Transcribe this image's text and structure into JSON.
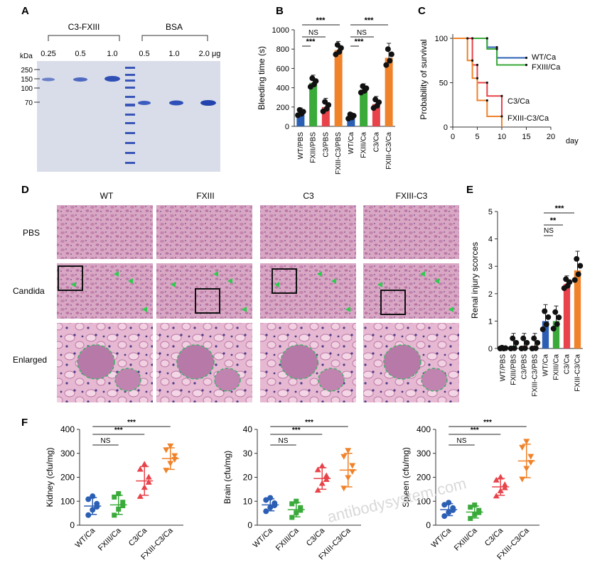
{
  "watermark": "antibodysystem.com",
  "panelA": {
    "letter": "A",
    "groups": [
      "C3-FXIII",
      "BSA"
    ],
    "kda_label": "kDa",
    "kda_marks": [
      "250",
      "150",
      "100",
      "70"
    ],
    "lane_amounts": [
      "0.25",
      "0.5",
      "1.0",
      "0.5",
      "1.0",
      "2.0 μg"
    ]
  },
  "panelB": {
    "letter": "B",
    "ylabel": "Bleeding time (s)",
    "yticks": [
      "0",
      "200",
      "400",
      "600",
      "800",
      "1000"
    ],
    "sig": [
      {
        "label": "***"
      },
      {
        "label": "NS"
      },
      {
        "label": "***"
      },
      {
        "label": "***"
      },
      {
        "label": "NS"
      },
      {
        "label": "***"
      }
    ]
  },
  "panelC": {
    "letter": "C",
    "ylabel": "Probability of survival",
    "yticks": [
      "0",
      "50",
      "100"
    ],
    "xticks": [
      "0",
      "5",
      "10",
      "15",
      "20"
    ],
    "xunit": "day",
    "series_labels": [
      "WT/Ca",
      "FXIII/Ca",
      "C3/Ca",
      "FXIII-C3/Ca"
    ]
  },
  "panelD": {
    "letter": "D",
    "columns": [
      "WT",
      "FXIII",
      "C3",
      "FXIII-C3"
    ],
    "rows": [
      "PBS",
      "Candida",
      "Enlarged"
    ]
  },
  "panelE": {
    "letter": "E",
    "ylabel": "Renal injury scorces",
    "yticks": [
      "0",
      "1",
      "2",
      "3",
      "4",
      "5"
    ],
    "sig": [
      "***",
      "**",
      "NS"
    ]
  },
  "panelF": {
    "letter": "F",
    "sig": [
      "***",
      "***",
      "NS"
    ]
  },
  "chart_data": [
    {
      "type": "bar",
      "id": "B",
      "categories": [
        "WT/PBS",
        "FXIII/PBS",
        "C3/PBS",
        "FXIII-C3/PBS",
        "WT/Ca",
        "FXIII/Ca",
        "C3/Ca",
        "FXIII-C3/Ca"
      ],
      "values": [
        140,
        450,
        200,
        790,
        100,
        380,
        230,
        710
      ],
      "errors": [
        50,
        80,
        90,
        90,
        40,
        60,
        80,
        150
      ],
      "colors": [
        "#2b5fb4",
        "#3aaa3a",
        "#e8434a",
        "#f0822a",
        "#2b5fb4",
        "#3aaa3a",
        "#e8434a",
        "#f0822a"
      ],
      "ylabel": "Bleeding time (s)",
      "ylim": [
        0,
        1000
      ]
    },
    {
      "type": "line",
      "id": "C",
      "ylabel": "Probability of survival",
      "xlim": [
        0,
        20
      ],
      "ylim": [
        0,
        100
      ],
      "series": [
        {
          "name": "WT/Ca",
          "color": "#2b5fb4",
          "x": [
            0,
            7,
            9,
            15
          ],
          "y": [
            100,
            90,
            78,
            78
          ]
        },
        {
          "name": "FXIII/Ca",
          "color": "#3aaa3a",
          "x": [
            0,
            7,
            9,
            15
          ],
          "y": [
            100,
            88,
            70,
            70
          ]
        },
        {
          "name": "C3/Ca",
          "color": "#e8434a",
          "x": [
            0,
            4,
            5,
            7,
            10
          ],
          "y": [
            100,
            70,
            50,
            35,
            0
          ]
        },
        {
          "name": "FXIII-C3/Ca",
          "color": "#f0822a",
          "x": [
            0,
            3,
            4,
            5,
            7,
            10
          ],
          "y": [
            100,
            75,
            55,
            30,
            12,
            0
          ]
        }
      ]
    },
    {
      "type": "bar",
      "id": "E",
      "categories": [
        "WT/PBS",
        "FXIII/PBS",
        "C3/PBS",
        "FXIII-C3/PBS",
        "WT/Ca",
        "FXIII/Ca",
        "C3/Ca",
        "FXIII-C3/Ca"
      ],
      "values": [
        0,
        0.1,
        0.1,
        0.1,
        1.0,
        1.0,
        2.35,
        2.85
      ],
      "errors": [
        0.05,
        0.45,
        0.45,
        0.45,
        0.6,
        0.55,
        0.3,
        0.7
      ],
      "colors": [
        "#2b5fb4",
        "#3aaa3a",
        "#e8434a",
        "#f0822a",
        "#2b5fb4",
        "#3aaa3a",
        "#e8434a",
        "#f0822a"
      ],
      "ylabel": "Renal injury scorces",
      "ylim": [
        0,
        5
      ]
    },
    {
      "type": "scatter",
      "id": "F-kidney",
      "ylabel": "Kidney (cfu/mg)",
      "yticks": [
        "0",
        "100",
        "200",
        "300",
        "400"
      ],
      "ylim": [
        0,
        400
      ],
      "categories": [
        "WT/Ca",
        "FXIII/Ca",
        "C3/Ca",
        "FXIII-C3/Ca"
      ],
      "means": [
        80,
        85,
        185,
        278
      ],
      "sd": [
        35,
        40,
        60,
        45
      ],
      "markers": [
        "circle",
        "square",
        "triangle",
        "triangle-down"
      ],
      "colors": [
        "#2b5fb4",
        "#3aaa3a",
        "#e8434a",
        "#f0822a"
      ]
    },
    {
      "type": "scatter",
      "id": "F-brain",
      "ylabel": "Brain (cfu/mg)",
      "yticks": [
        "0",
        "10",
        "20",
        "30",
        "40"
      ],
      "ylim": [
        0,
        40
      ],
      "categories": [
        "WT/Ca",
        "FXIII/Ca",
        "C3/Ca",
        "FXIII-C3/Ca"
      ],
      "means": [
        8.5,
        6.5,
        19.5,
        23
      ],
      "sd": [
        2.5,
        3,
        4.5,
        7
      ],
      "markers": [
        "circle",
        "square",
        "triangle",
        "triangle-down"
      ],
      "colors": [
        "#2b5fb4",
        "#3aaa3a",
        "#e8434a",
        "#f0822a"
      ]
    },
    {
      "type": "scatter",
      "id": "F-spleen",
      "ylabel": "Spleen (cfu/mg)",
      "yticks": [
        "0",
        "100",
        "200",
        "300",
        "400"
      ],
      "ylim": [
        0,
        400
      ],
      "categories": [
        "WT/Ca",
        "FXIII/Ca",
        "C3/Ca",
        "FXIII-C3/Ca"
      ],
      "means": [
        65,
        55,
        160,
        268
      ],
      "sd": [
        25,
        25,
        35,
        70
      ],
      "markers": [
        "circle",
        "square",
        "triangle",
        "triangle-down"
      ],
      "colors": [
        "#2b5fb4",
        "#3aaa3a",
        "#e8434a",
        "#f0822a"
      ]
    }
  ]
}
